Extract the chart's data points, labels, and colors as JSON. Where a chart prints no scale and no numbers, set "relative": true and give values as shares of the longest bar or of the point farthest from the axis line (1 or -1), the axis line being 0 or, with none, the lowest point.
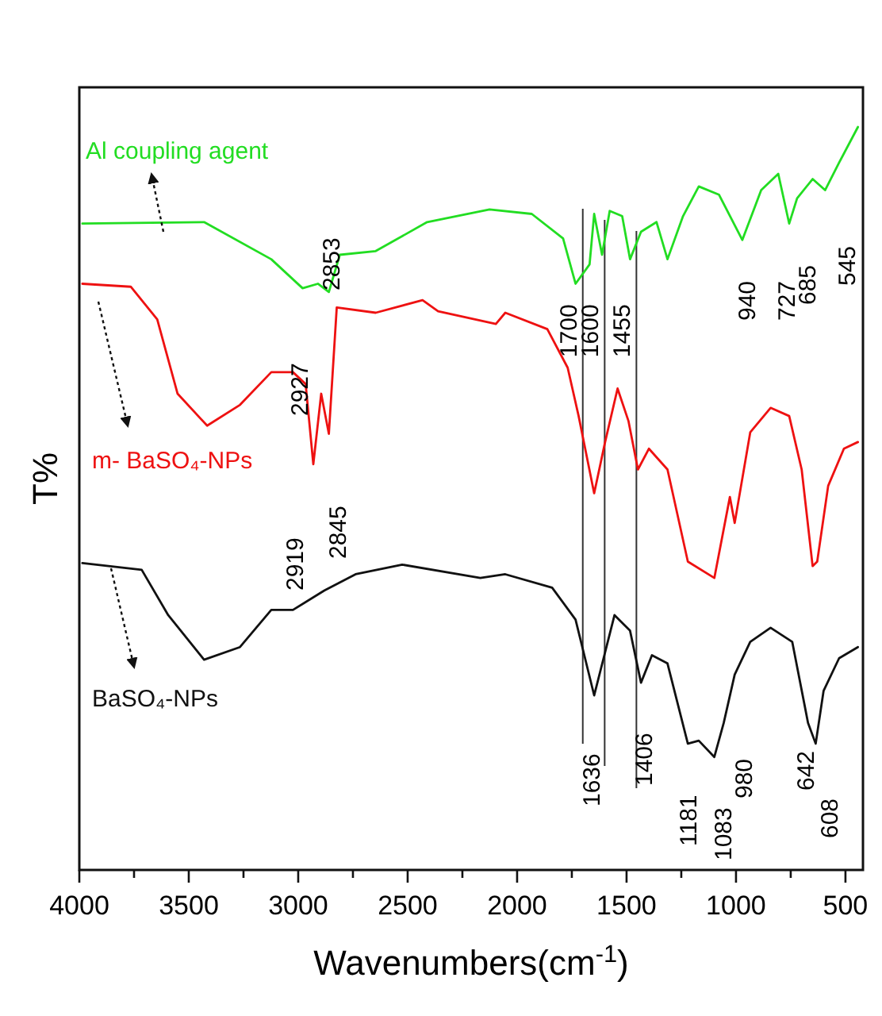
{
  "chart_data": {
    "type": "line",
    "relative": true,
    "xlabel": "Wavenumbers(cm$^{-1}$)",
    "ylabel": "T%",
    "xlim": [
      4000,
      420
    ],
    "xticks": [
      4000,
      {
        "value": 3750,
        "label": null
      },
      3500,
      {
        "value": 3250,
        "label": null
      },
      3000,
      {
        "value": 2750,
        "label": null
      },
      2500,
      {
        "value": 2250,
        "label": null
      },
      2000,
      {
        "value": 1750,
        "label": null
      },
      1500,
      {
        "value": 1250,
        "label": null
      },
      1000,
      {
        "value": 750,
        "label": null
      },
      500
    ],
    "legend": false,
    "grid": false,
    "tick_labels": "x",
    "line_style": "solid",
    "marker": "none",
    "series": [
      {
        "name": "Al coupling agent",
        "color": "#22dd22",
        "x": [
          3986,
          3430,
          3123,
          2980,
          2910,
          2860,
          2810,
          2646,
          2411,
          2126,
          1933,
          1790,
          1733,
          1669,
          1648,
          1612,
          1577,
          1520,
          1484,
          1434,
          1363,
          1313,
          1242,
          1170,
          1078,
          971,
          885,
          807,
          757,
          721,
          650,
          593,
          529,
          443
        ],
        "values": [
          0.87,
          0.872,
          0.822,
          0.783,
          0.789,
          0.778,
          0.828,
          0.833,
          0.872,
          0.889,
          0.883,
          0.85,
          0.789,
          0.815,
          0.883,
          0.828,
          0.887,
          0.88,
          0.822,
          0.859,
          0.872,
          0.822,
          0.88,
          0.92,
          0.909,
          0.848,
          0.915,
          0.937,
          0.87,
          0.904,
          0.93,
          0.915,
          0.952,
          1.0
        ]
      },
      {
        "name": "m- BaSO₄-NPs",
        "color": "#ee1111",
        "x": [
          3986,
          3765,
          3644,
          3551,
          3416,
          3266,
          3123,
          3024,
          2966,
          2931,
          2895,
          2860,
          2824,
          2646,
          2432,
          2361,
          2097,
          2054,
          1862,
          1769,
          1719,
          1648,
          1598,
          1541,
          1491,
          1448,
          1398,
          1313,
          1220,
          1099,
          1028,
          1006,
          935,
          842,
          757,
          700,
          650,
          629,
          579,
          507,
          443
        ],
        "values": [
          0.789,
          0.785,
          0.741,
          0.641,
          0.598,
          0.626,
          0.67,
          0.67,
          0.654,
          0.546,
          0.641,
          0.587,
          0.757,
          0.75,
          0.767,
          0.752,
          0.735,
          0.75,
          0.728,
          0.676,
          0.611,
          0.507,
          0.576,
          0.648,
          0.604,
          0.539,
          0.567,
          0.539,
          0.415,
          0.393,
          0.502,
          0.467,
          0.589,
          0.622,
          0.611,
          0.539,
          0.409,
          0.415,
          0.517,
          0.567,
          0.576
        ]
      },
      {
        "name": "BaSO₄-NPs",
        "color": "#111111",
        "x": [
          3986,
          3715,
          3594,
          3430,
          3266,
          3123,
          3024,
          2881,
          2738,
          2525,
          2168,
          2054,
          1840,
          1733,
          1648,
          1555,
          1484,
          1434,
          1384,
          1313,
          1220,
          1170,
          1099,
          1056,
          1006,
          935,
          842,
          743,
          671,
          636,
          600,
          529,
          443
        ],
        "values": [
          0.413,
          0.404,
          0.343,
          0.283,
          0.3,
          0.35,
          0.35,
          0.376,
          0.398,
          0.411,
          0.393,
          0.398,
          0.38,
          0.337,
          0.235,
          0.343,
          0.322,
          0.252,
          0.289,
          0.278,
          0.17,
          0.174,
          0.152,
          0.198,
          0.263,
          0.307,
          0.326,
          0.307,
          0.198,
          0.17,
          0.241,
          0.285,
          0.3
        ]
      }
    ],
    "ref_lines": [
      {
        "axis": "x",
        "value": 1700,
        "label": "1700",
        "color": "#333333"
      },
      {
        "axis": "x",
        "value": 1600,
        "label": "1600",
        "color": "#333333"
      },
      {
        "axis": "x",
        "value": 1455,
        "label": "1455",
        "color": "#333333"
      }
    ],
    "annotations": [
      "2853",
      "2927",
      "940",
      "727",
      "685",
      "545",
      "2919",
      "2845",
      "1636",
      "1406",
      "1181",
      "1083",
      "980",
      "642",
      "608"
    ]
  }
}
